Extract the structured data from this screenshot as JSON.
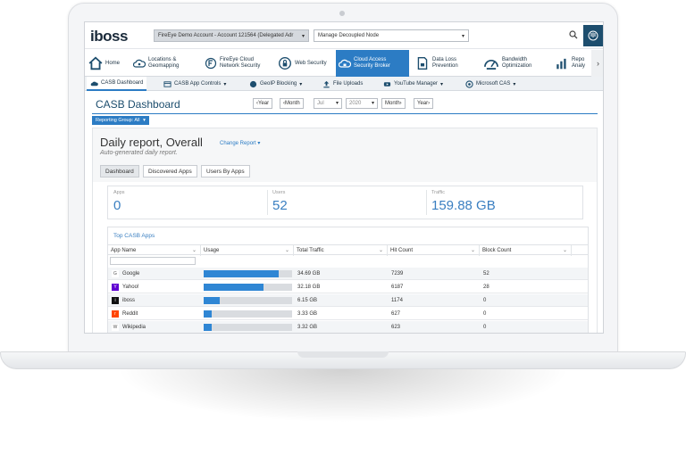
{
  "topbar": {
    "logo": "iboss",
    "account_select": "FireEye Demo Account - Account 121564 (Delegated Adr",
    "node_select": "Manage Decoupled Node"
  },
  "nav": {
    "items": [
      {
        "label": "Home",
        "icon": "home-icon"
      },
      {
        "label": "Locations & Geomapping",
        "icon": "cloud-location-icon"
      },
      {
        "label": "FireEye Cloud Network Security",
        "icon": "fireeye-icon"
      },
      {
        "label": "Web Security",
        "icon": "globe-lock-icon"
      },
      {
        "label": "Cloud Access Security Broker",
        "icon": "cloud-lock-icon",
        "active": true
      },
      {
        "label": "Data Loss Prevention",
        "icon": "document-lock-icon"
      },
      {
        "label": "Bandwidth Optimization",
        "icon": "gauge-icon"
      },
      {
        "label": "Repo Analy",
        "icon": "chart-icon"
      }
    ]
  },
  "subnav": {
    "items": [
      {
        "label": "CASB Dashboard",
        "active": true
      },
      {
        "label": "CASB App Controls"
      },
      {
        "label": "GeoIP Blocking"
      },
      {
        "label": "File Uploads"
      },
      {
        "label": "YouTube Manager"
      },
      {
        "label": "Microsoft CAS"
      }
    ]
  },
  "page": {
    "title": "CASB Dashboard",
    "date_controls": {
      "prev_year": "‹Year",
      "prev_month": "‹Month",
      "month": "Jul",
      "year": "2020",
      "next_month": "Month›",
      "next_year": "Year›"
    },
    "reporting_group": "Reporting Group: All"
  },
  "report": {
    "title": "Daily report, Overall",
    "change_report": "Change Report",
    "subtitle": "Auto-generated daily report.",
    "tabs": [
      "Dashboard",
      "Discovered Apps",
      "Users By Apps"
    ],
    "stats": [
      {
        "label": "Apps",
        "value": "0"
      },
      {
        "label": "Users",
        "value": "52"
      },
      {
        "label": "Traffic",
        "value": "159.88 GB"
      }
    ],
    "table": {
      "title": "Top CASB Apps",
      "columns": [
        "App Name",
        "Usage",
        "Total Traffic",
        "Hit Count",
        "Block Count"
      ],
      "rows": [
        {
          "app": "Google",
          "usage": 0.85,
          "traffic": "34.69 GB",
          "hits": "7239",
          "blocks": "52",
          "icon_color": "#ffffff",
          "icon_text": "G"
        },
        {
          "app": "Yahoo!",
          "usage": 0.68,
          "traffic": "32.18 GB",
          "hits": "6187",
          "blocks": "28",
          "icon_color": "#5f01d1",
          "icon_text": "Y"
        },
        {
          "app": "iboss",
          "usage": 0.18,
          "traffic": "6.15 GB",
          "hits": "1174",
          "blocks": "0",
          "icon_color": "#111111",
          "icon_text": "i"
        },
        {
          "app": "Reddit",
          "usage": 0.09,
          "traffic": "3.33 GB",
          "hits": "627",
          "blocks": "0",
          "icon_color": "#ff4500",
          "icon_text": "r"
        },
        {
          "app": "Wikipedia",
          "usage": 0.09,
          "traffic": "3.32 GB",
          "hits": "623",
          "blocks": "0",
          "icon_color": "#ffffff",
          "icon_text": "W"
        }
      ]
    }
  },
  "colors": {
    "accent": "#2c7cc4",
    "title": "#1d4e6e",
    "bar": "#2f86d4"
  }
}
